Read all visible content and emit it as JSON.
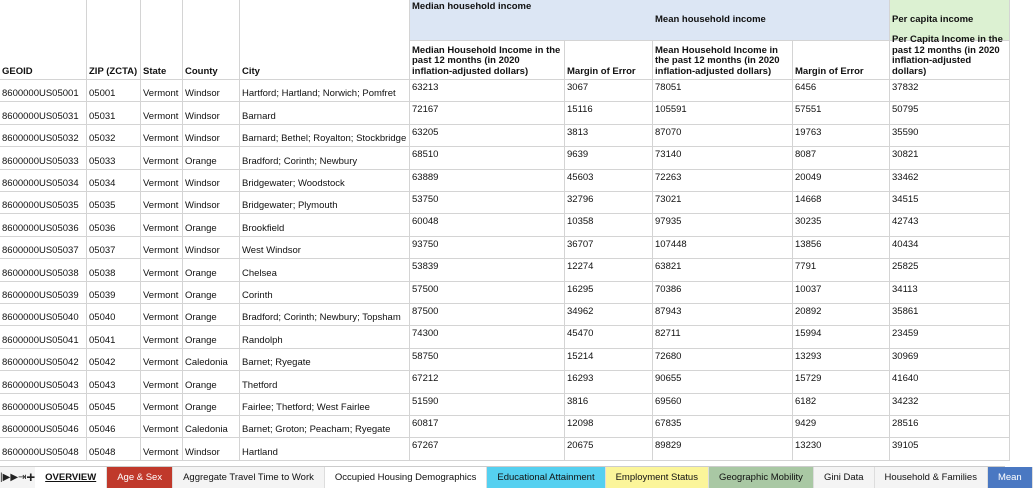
{
  "group_headers": [
    "Median household income",
    "Mean household income",
    "Per capita income"
  ],
  "headers": [
    "GEOID",
    "ZIP (ZCTA)",
    "State",
    "County",
    "City",
    "Median Household Income in the past 12 months (in 2020 inflation-adjusted dollars)",
    "Margin of Error",
    "Mean Household Income in the past 12 months (in 2020 inflation-adjusted dollars)",
    "Margin of Error",
    "Per Capita Income in the past 12 months (in 2020 inflation-adjusted dollars)"
  ],
  "rows": [
    [
      "8600000US05001",
      "05001",
      "Vermont",
      "Windsor",
      "Hartford; Hartland; Norwich; Pomfret",
      63213,
      3067,
      78051,
      6456,
      37832
    ],
    [
      "8600000US05031",
      "05031",
      "Vermont",
      "Windsor",
      "Barnard",
      72167,
      15116,
      105591,
      57551,
      50795
    ],
    [
      "8600000US05032",
      "05032",
      "Vermont",
      "Windsor",
      "Barnard; Bethel; Royalton; Stockbridge",
      63205,
      3813,
      87070,
      19763,
      35590
    ],
    [
      "8600000US05033",
      "05033",
      "Vermont",
      "Orange",
      "Bradford; Corinth; Newbury",
      68510,
      9639,
      73140,
      8087,
      30821
    ],
    [
      "8600000US05034",
      "05034",
      "Vermont",
      "Windsor",
      "Bridgewater; Woodstock",
      63889,
      45603,
      72263,
      20049,
      33462
    ],
    [
      "8600000US05035",
      "05035",
      "Vermont",
      "Windsor",
      "Bridgewater; Plymouth",
      53750,
      32796,
      73021,
      14668,
      34515
    ],
    [
      "8600000US05036",
      "05036",
      "Vermont",
      "Orange",
      "Brookfield",
      60048,
      10358,
      97935,
      30235,
      42743
    ],
    [
      "8600000US05037",
      "05037",
      "Vermont",
      "Windsor",
      "West Windsor",
      93750,
      36707,
      107448,
      13856,
      40434
    ],
    [
      "8600000US05038",
      "05038",
      "Vermont",
      "Orange",
      "Chelsea",
      53839,
      12274,
      63821,
      7791,
      25825
    ],
    [
      "8600000US05039",
      "05039",
      "Vermont",
      "Orange",
      "Corinth",
      57500,
      16295,
      70386,
      10037,
      34113
    ],
    [
      "8600000US05040",
      "05040",
      "Vermont",
      "Orange",
      "Bradford; Corinth; Newbury; Topsham",
      87500,
      34962,
      87943,
      20892,
      35861
    ],
    [
      "8600000US05041",
      "05041",
      "Vermont",
      "Orange",
      "Randolph",
      74300,
      45470,
      82711,
      15994,
      23459
    ],
    [
      "8600000US05042",
      "05042",
      "Vermont",
      "Caledonia",
      "Barnet; Ryegate",
      58750,
      15214,
      72680,
      13293,
      30969
    ],
    [
      "8600000US05043",
      "05043",
      "Vermont",
      "Orange",
      "Thetford",
      67212,
      16293,
      90655,
      15729,
      41640
    ],
    [
      "8600000US05045",
      "05045",
      "Vermont",
      "Orange",
      "Fairlee; Thetford; West Fairlee",
      51590,
      3816,
      69560,
      6182,
      34232
    ],
    [
      "8600000US05046",
      "05046",
      "Vermont",
      "Caledonia",
      "Barnet; Groton; Peacham; Ryegate",
      60817,
      12098,
      67835,
      9429,
      28516
    ],
    [
      "8600000US05048",
      "05048",
      "Vermont",
      "Windsor",
      "Hartland",
      67267,
      20675,
      89829,
      13230,
      39105
    ]
  ],
  "tabs": [
    "OVERVIEW",
    "Age & Sex",
    "Aggregate Travel Time to Work",
    "Occupied Housing Demographics",
    "Educational Attainment",
    "Employment Status",
    "Geographic Mobility",
    "Gini Data",
    "Household & Families",
    "Mean"
  ]
}
